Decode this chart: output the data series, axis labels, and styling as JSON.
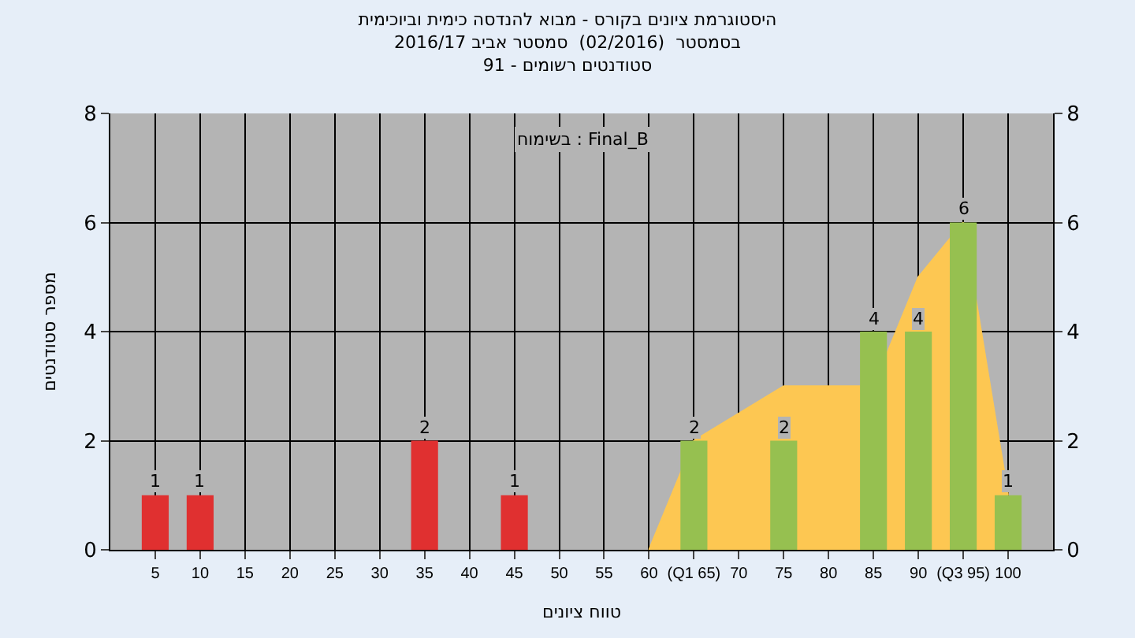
{
  "chart_data": {
    "type": "bar",
    "title": "היסטוגרמת ציונים בקורס - מבוא להנדסה כימית וביוכימית",
    "subtitle": "בסמסטר  (02/2016)  סמסטר אביב 2016/17\nסטודנטים רשומים - 91",
    "xlabel": "טווח ציונים",
    "ylabel": "מספר סטודנטים",
    "annotations": [
      "בשימוח : Final_B"
    ],
    "series": [
      {
        "type": "area",
        "color": "#fdc752",
        "x": [
          60,
          65,
          75,
          85,
          90,
          95,
          100
        ],
        "values": [
          0,
          2,
          3,
          3,
          5,
          6,
          1
        ]
      },
      {
        "x": [
          5,
          10,
          35,
          45,
          65,
          75,
          85,
          90,
          95,
          100
        ],
        "values": [
          1,
          1,
          2,
          1,
          2,
          2,
          4,
          4,
          6,
          1
        ],
        "data_labels": true,
        "colors": [
          "#e03030",
          "#e03030",
          "#e03030",
          "#e03030",
          "#96c050",
          "#96c050",
          "#96c050",
          "#96c050",
          "#96c050",
          "#96c050"
        ]
      }
    ],
    "xlim": [
      0,
      105
    ],
    "xticks": [
      5,
      10,
      15,
      20,
      25,
      30,
      35,
      40,
      45,
      50,
      55,
      60,
      {
        "value": 65,
        "label": "(Q1 65)"
      },
      70,
      75,
      80,
      85,
      90,
      {
        "value": 95,
        "label": "(Q3 95)"
      },
      100
    ],
    "ylim": [
      0,
      8
    ],
    "yticks": [
      0,
      2,
      4,
      6,
      8
    ],
    "y2lim": [
      0,
      8
    ],
    "y2ticks": [
      0,
      2,
      4,
      6,
      8
    ],
    "grid": true
  }
}
